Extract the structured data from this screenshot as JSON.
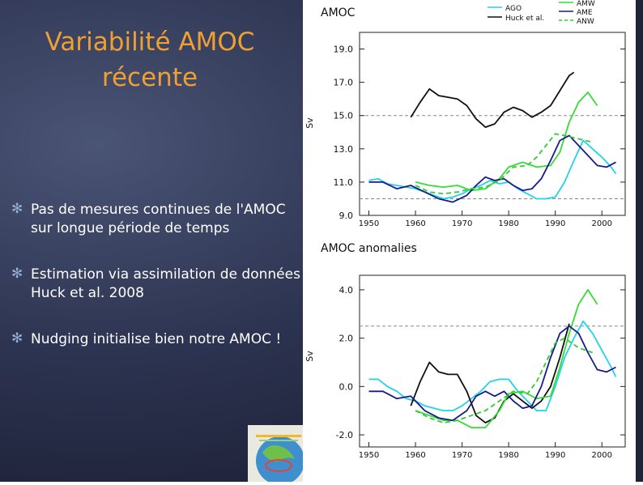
{
  "slide": {
    "title_line1": "Variabilité AMOC",
    "title_line2": "récente",
    "bullets": [
      "Pas de mesures continues de l'AMOC sur longue période de temps",
      "Estimation via assimilation de données Huck et al. 2008",
      "Nudging initialise bien notre AMOC !"
    ],
    "bullet_icon": "asterisk-icon"
  },
  "chart_data": [
    {
      "type": "line",
      "title": "AMOC",
      "ylabel": "Sv",
      "xlim": [
        1948,
        2005
      ],
      "ylim": [
        9,
        20
      ],
      "xticks": [
        1950,
        1960,
        1970,
        1980,
        1990,
        2000
      ],
      "yticks": [
        9.0,
        11.0,
        13.0,
        15.0,
        17.0,
        19.0
      ],
      "xtick_labels": [
        "1950",
        "1960",
        "1970",
        "1980",
        "1990",
        "2000"
      ],
      "ytick_labels": [
        "9.0",
        "11.0",
        "13.0",
        "15.0",
        "17.0",
        "19.0"
      ],
      "reference_lines": [
        15.0,
        10.0
      ],
      "legend_placement": "top",
      "series": [
        {
          "name": "AGO",
          "color": "#22d3e8",
          "dash": "solid",
          "x": [
            1950,
            1952,
            1954,
            1956,
            1958,
            1960,
            1962,
            1964,
            1966,
            1968,
            1970,
            1972,
            1974,
            1976,
            1978,
            1980,
            1982,
            1984,
            1986,
            1988,
            1990,
            1992,
            1994,
            1996,
            1998,
            2000,
            2002,
            2003
          ],
          "y": [
            11.1,
            11.2,
            10.9,
            10.8,
            10.7,
            10.6,
            10.4,
            10.2,
            10.0,
            10.1,
            10.3,
            10.6,
            10.8,
            11.1,
            10.9,
            11.0,
            10.6,
            10.3,
            10.0,
            10.0,
            10.1,
            11.0,
            12.3,
            13.5,
            13.0,
            12.5,
            11.9,
            11.5
          ]
        },
        {
          "name": "Huck et al.",
          "color": "#111111",
          "dash": "solid",
          "x": [
            1959,
            1961,
            1963,
            1965,
            1967,
            1969,
            1971,
            1973,
            1975,
            1977,
            1979,
            1981,
            1983,
            1985,
            1987,
            1989,
            1991,
            1993,
            1994
          ],
          "y": [
            14.9,
            15.8,
            16.6,
            16.2,
            16.1,
            16.0,
            15.6,
            14.8,
            14.3,
            14.5,
            15.2,
            15.5,
            15.3,
            14.9,
            15.2,
            15.6,
            16.5,
            17.4,
            17.6
          ]
        },
        {
          "name": "AMW",
          "color": "#33dd33",
          "dash": "solid",
          "x": [
            1960,
            1963,
            1966,
            1969,
            1972,
            1975,
            1978,
            1980,
            1983,
            1986,
            1989,
            1991,
            1993,
            1995,
            1997,
            1999
          ],
          "y": [
            11.0,
            10.8,
            10.7,
            10.8,
            10.5,
            10.6,
            11.2,
            11.9,
            12.2,
            11.9,
            12.0,
            12.8,
            14.6,
            15.8,
            16.4,
            15.6
          ]
        },
        {
          "name": "AME",
          "color": "#1a1a8c",
          "dash": "solid",
          "x": [
            1950,
            1953,
            1956,
            1959,
            1962,
            1965,
            1968,
            1971,
            1973,
            1975,
            1977,
            1979,
            1981,
            1983,
            1985,
            1987,
            1989,
            1991,
            1993,
            1995,
            1997,
            1999,
            2001,
            2003
          ],
          "y": [
            11.0,
            11.0,
            10.6,
            10.8,
            10.4,
            10.0,
            9.8,
            10.2,
            10.8,
            11.3,
            11.1,
            11.2,
            10.8,
            10.5,
            10.6,
            11.2,
            12.3,
            13.5,
            13.8,
            13.2,
            12.6,
            12.0,
            11.9,
            12.2
          ]
        },
        {
          "name": "ANW",
          "color": "#33cc33",
          "dash": "dashed",
          "x": [
            1960,
            1963,
            1966,
            1969,
            1972,
            1975,
            1978,
            1981,
            1984,
            1986,
            1988,
            1990,
            1992,
            1995,
            1998
          ],
          "y": [
            10.8,
            10.4,
            10.3,
            10.4,
            10.6,
            10.7,
            11.1,
            11.9,
            12.0,
            12.5,
            13.2,
            13.9,
            13.8,
            13.6,
            13.4
          ]
        }
      ]
    },
    {
      "type": "line",
      "title": "AMOC anomalies",
      "ylabel": "Sv",
      "xlim": [
        1948,
        2005
      ],
      "ylim": [
        -2.5,
        4.6
      ],
      "xticks": [
        1950,
        1960,
        1970,
        1980,
        1990,
        2000
      ],
      "yticks": [
        -2.0,
        0.0,
        2.0,
        4.0
      ],
      "xtick_labels": [
        "1950",
        "1960",
        "1970",
        "1980",
        "1990",
        "2000"
      ],
      "ytick_labels": [
        "-2.0",
        "0.0",
        "2.0",
        "4.0"
      ],
      "reference_lines": [
        2.5
      ],
      "series": [
        {
          "name": "AGO",
          "color": "#22d3e8",
          "dash": "solid",
          "x": [
            1950,
            1952,
            1954,
            1956,
            1958,
            1960,
            1962,
            1964,
            1966,
            1968,
            1970,
            1972,
            1974,
            1976,
            1978,
            1980,
            1982,
            1984,
            1986,
            1988,
            1990,
            1992,
            1994,
            1996,
            1998,
            2000,
            2002,
            2003
          ],
          "y": [
            0.3,
            0.3,
            0.0,
            -0.2,
            -0.5,
            -0.6,
            -0.8,
            -0.9,
            -1.0,
            -1.0,
            -0.8,
            -0.5,
            -0.2,
            0.2,
            0.3,
            0.3,
            -0.2,
            -0.6,
            -1.0,
            -1.0,
            0.0,
            1.2,
            2.0,
            2.7,
            2.2,
            1.5,
            0.8,
            0.4
          ]
        },
        {
          "name": "Huck et al.",
          "color": "#111111",
          "dash": "solid",
          "x": [
            1959,
            1961,
            1963,
            1965,
            1967,
            1969,
            1971,
            1973,
            1975,
            1977,
            1979,
            1981,
            1983,
            1985,
            1987,
            1989,
            1991,
            1993
          ],
          "y": [
            -0.8,
            0.2,
            1.0,
            0.6,
            0.5,
            0.5,
            -0.2,
            -1.2,
            -1.5,
            -1.3,
            -0.6,
            -0.3,
            -0.6,
            -0.9,
            -0.6,
            0.0,
            1.2,
            2.6
          ]
        },
        {
          "name": "AMW",
          "color": "#33dd33",
          "dash": "solid",
          "x": [
            1960,
            1963,
            1966,
            1969,
            1972,
            1975,
            1978,
            1980,
            1983,
            1986,
            1989,
            1991,
            1993,
            1995,
            1997,
            1999
          ],
          "y": [
            -1.0,
            -1.2,
            -1.4,
            -1.4,
            -1.7,
            -1.7,
            -1.0,
            -0.3,
            -0.2,
            -0.5,
            -0.4,
            0.8,
            2.2,
            3.4,
            4.0,
            3.4
          ]
        },
        {
          "name": "AME",
          "color": "#1a1a8c",
          "dash": "solid",
          "x": [
            1950,
            1953,
            1956,
            1959,
            1962,
            1965,
            1968,
            1971,
            1973,
            1975,
            1977,
            1979,
            1981,
            1983,
            1985,
            1987,
            1989,
            1991,
            1993,
            1995,
            1997,
            1999,
            2001,
            2003
          ],
          "y": [
            -0.2,
            -0.2,
            -0.5,
            -0.4,
            -1.0,
            -1.3,
            -1.4,
            -1.0,
            -0.4,
            -0.2,
            -0.4,
            -0.2,
            -0.6,
            -0.9,
            -0.8,
            0.0,
            1.2,
            2.2,
            2.5,
            2.2,
            1.4,
            0.7,
            0.6,
            0.8
          ]
        },
        {
          "name": "ANW",
          "color": "#33cc33",
          "dash": "dashed",
          "x": [
            1960,
            1963,
            1966,
            1969,
            1972,
            1975,
            1978,
            1981,
            1984,
            1986,
            1988,
            1990,
            1992,
            1995,
            1998
          ],
          "y": [
            -1.0,
            -1.3,
            -1.5,
            -1.4,
            -1.2,
            -1.0,
            -0.6,
            -0.2,
            -0.3,
            0.2,
            1.0,
            1.8,
            2.0,
            1.6,
            1.4
          ]
        }
      ]
    }
  ]
}
